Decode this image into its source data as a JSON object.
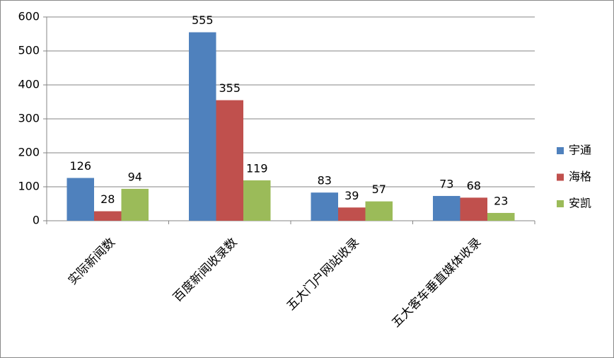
{
  "chart_data": {
    "type": "bar",
    "categories": [
      "实际新闻数",
      "百度新闻收录数",
      "五大门户网站收录",
      "五大客车垂直媒体收录"
    ],
    "series": [
      {
        "name": "宇通",
        "color": "#4f81bd",
        "values": [
          126,
          555,
          83,
          73
        ]
      },
      {
        "name": "海格",
        "color": "#c0504d",
        "values": [
          28,
          355,
          39,
          68
        ]
      },
      {
        "name": "安凯",
        "color": "#9bbb59",
        "values": [
          94,
          119,
          57,
          23
        ]
      }
    ],
    "ylim": [
      0,
      600
    ],
    "yticks": [
      0,
      100,
      200,
      300,
      400,
      500,
      600
    ],
    "grid": true,
    "legend": "right"
  }
}
